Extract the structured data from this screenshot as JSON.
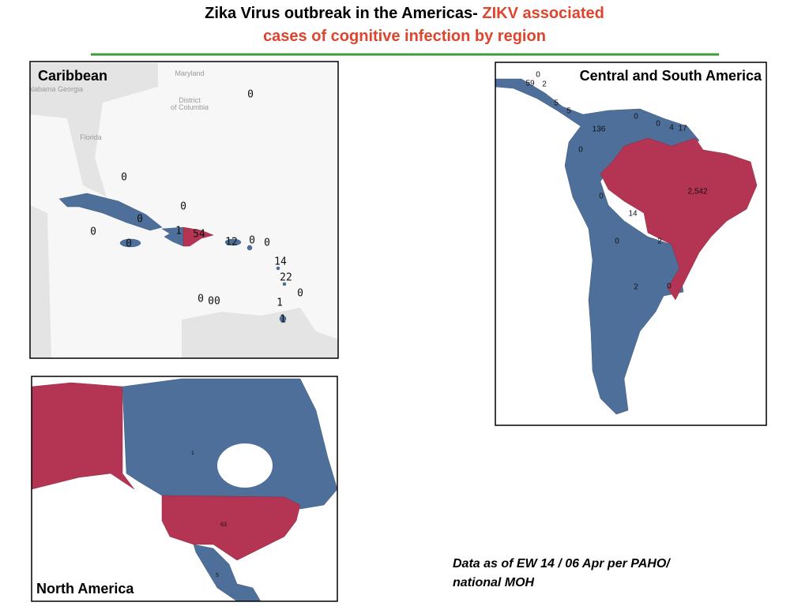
{
  "title": {
    "black": "Zika Virus outbreak in the Americas-",
    "red": [
      "ZIKV associated",
      "cases of cognitive infection by region"
    ]
  },
  "maps": [
    {
      "name": "Caribbean",
      "place_names": [
        "Maryland",
        "Alabama Georgia",
        "District",
        "of Columbia",
        "Florida"
      ],
      "labels": [
        "0",
        "0",
        "0",
        "0",
        "0",
        "1",
        "54",
        "0",
        "12",
        "0",
        "0",
        "14",
        "22",
        "0",
        "0",
        "00",
        "1",
        "1"
      ]
    },
    {
      "name": "Central and South America",
      "labels": [
        "0",
        "59",
        "2",
        "5",
        "5",
        "136",
        "0",
        "0",
        "4",
        "17",
        "0",
        "0",
        "2,542",
        "14",
        "0",
        "2",
        "2",
        "0"
      ]
    },
    {
      "name": "North America",
      "labels": [
        "1",
        "63",
        "5"
      ]
    }
  ],
  "footnote": [
    "Data as of EW 14 / 06 Apr per PAHO/",
    "national MOH"
  ]
}
